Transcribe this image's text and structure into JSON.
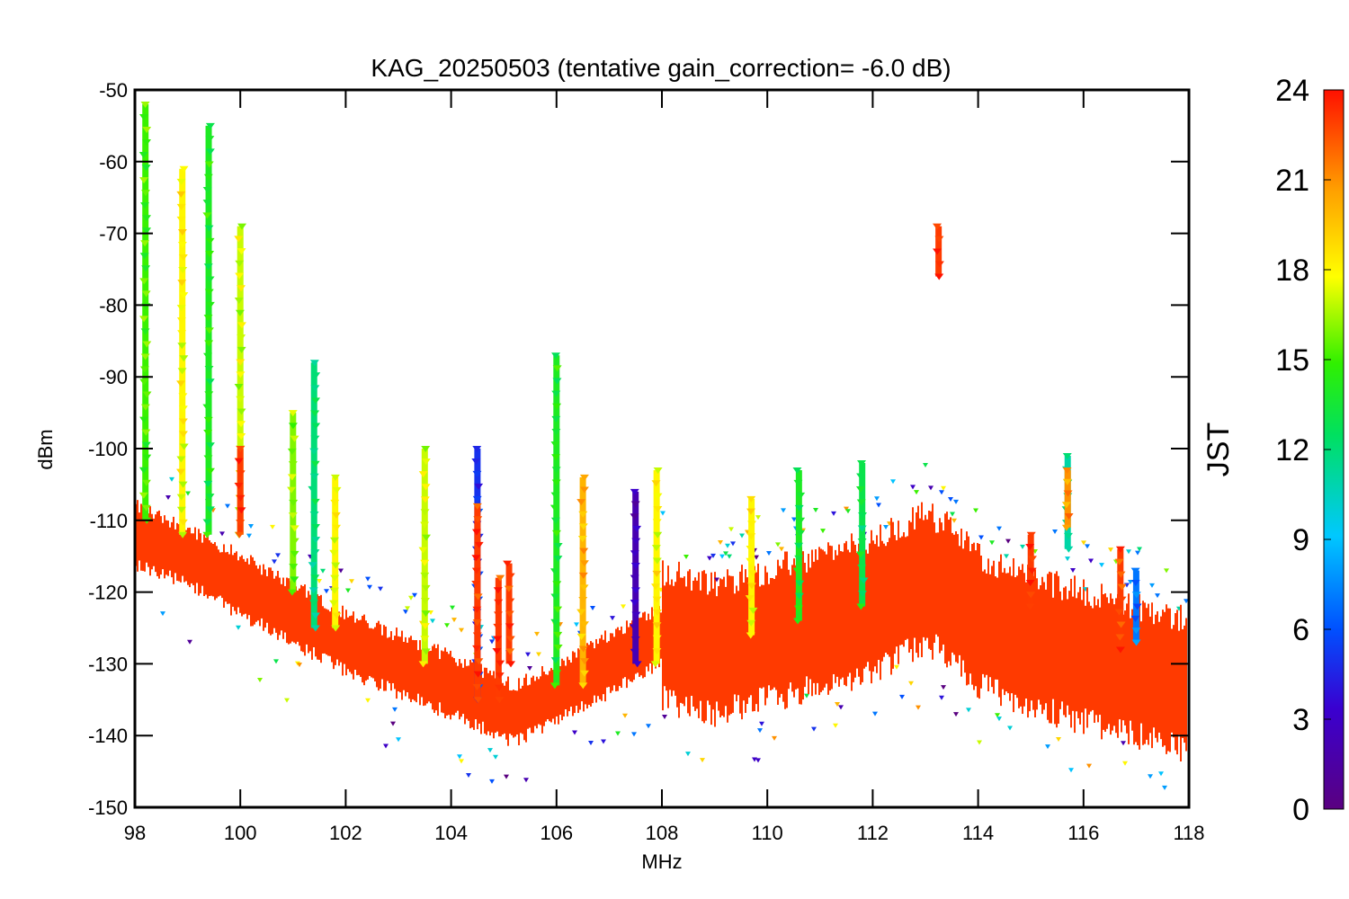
{
  "chart_data": {
    "type": "scatter",
    "title": "KAG_20250503 (tentative gain_correction= -6.0 dB)",
    "xlabel": "MHz",
    "ylabel": "dBm",
    "xlim": [
      98,
      118
    ],
    "ylim": [
      -150,
      -50
    ],
    "xticks": [
      98,
      100,
      102,
      104,
      106,
      108,
      110,
      112,
      114,
      116,
      118
    ],
    "yticks": [
      -150,
      -140,
      -130,
      -120,
      -110,
      -100,
      -90,
      -80,
      -70,
      -60,
      -50
    ],
    "grid": false,
    "marker": "inverted-triangle",
    "colorbar": {
      "label": "JST",
      "range": [
        0,
        24
      ],
      "ticks": [
        0,
        3,
        6,
        9,
        12,
        15,
        18,
        21,
        24
      ],
      "colormap": "rainbow (purple-blue-cyan-green-yellow-orange-red)"
    },
    "noise_floor": [
      {
        "x": 98.0,
        "y": -112
      },
      {
        "x": 99.0,
        "y": -115
      },
      {
        "x": 100.0,
        "y": -119
      },
      {
        "x": 101.0,
        "y": -123
      },
      {
        "x": 102.0,
        "y": -127
      },
      {
        "x": 103.0,
        "y": -130
      },
      {
        "x": 104.0,
        "y": -133
      },
      {
        "x": 104.9,
        "y": -136
      },
      {
        "x": 105.2,
        "y": -137
      },
      {
        "x": 106.0,
        "y": -134
      },
      {
        "x": 107.0,
        "y": -130
      },
      {
        "x": 108.0,
        "y": -126
      },
      {
        "x": 109.0,
        "y": -128
      },
      {
        "x": 110.0,
        "y": -126
      },
      {
        "x": 111.0,
        "y": -124
      },
      {
        "x": 112.0,
        "y": -122
      },
      {
        "x": 113.0,
        "y": -118
      },
      {
        "x": 113.5,
        "y": -120
      },
      {
        "x": 114.0,
        "y": -124
      },
      {
        "x": 115.0,
        "y": -127
      },
      {
        "x": 116.0,
        "y": -129
      },
      {
        "x": 117.0,
        "y": -131
      },
      {
        "x": 118.0,
        "y": -133
      }
    ],
    "peaks": [
      {
        "x": 98.2,
        "y_min": -110,
        "y_max": -52,
        "jst": 15
      },
      {
        "x": 98.9,
        "y_min": -112,
        "y_max": -61,
        "jst": 18
      },
      {
        "x": 99.4,
        "y_min": -112,
        "y_max": -55,
        "jst": 14
      },
      {
        "x": 100.0,
        "y_min": -112,
        "y_max": -69,
        "jst": 17
      },
      {
        "x": 100.0,
        "y_min": -112,
        "y_max": -100,
        "jst": 23
      },
      {
        "x": 101.0,
        "y_min": -120,
        "y_max": -95,
        "jst": 16
      },
      {
        "x": 101.4,
        "y_min": -125,
        "y_max": -88,
        "jst": 12
      },
      {
        "x": 101.8,
        "y_min": -125,
        "y_max": -104,
        "jst": 18
      },
      {
        "x": 103.5,
        "y_min": -130,
        "y_max": -100,
        "jst": 17
      },
      {
        "x": 104.5,
        "y_min": -135,
        "y_max": -100,
        "jst": 5
      },
      {
        "x": 104.5,
        "y_min": -135,
        "y_max": -108,
        "jst": 23
      },
      {
        "x": 104.9,
        "y_min": -135,
        "y_max": -118,
        "jst": 23
      },
      {
        "x": 105.1,
        "y_min": -130,
        "y_max": -116,
        "jst": 23
      },
      {
        "x": 106.0,
        "y_min": -133,
        "y_max": -87,
        "jst": 14
      },
      {
        "x": 106.5,
        "y_min": -133,
        "y_max": -104,
        "jst": 20
      },
      {
        "x": 107.5,
        "y_min": -130,
        "y_max": -106,
        "jst": 2
      },
      {
        "x": 107.9,
        "y_min": -130,
        "y_max": -103,
        "jst": 18
      },
      {
        "x": 109.7,
        "y_min": -126,
        "y_max": -107,
        "jst": 18
      },
      {
        "x": 110.6,
        "y_min": -124,
        "y_max": -103,
        "jst": 14
      },
      {
        "x": 111.8,
        "y_min": -122,
        "y_max": -102,
        "jst": 13
      },
      {
        "x": 113.25,
        "y_min": -76,
        "y_max": -69,
        "jst": 23
      },
      {
        "x": 115.0,
        "y_min": -122,
        "y_max": -112,
        "jst": 23
      },
      {
        "x": 115.7,
        "y_min": -114,
        "y_max": -101,
        "jst": 11
      },
      {
        "x": 115.7,
        "y_min": -111,
        "y_max": -103,
        "jst": 21
      },
      {
        "x": 116.7,
        "y_min": -128,
        "y_max": -114,
        "jst": 23
      },
      {
        "x": 117.0,
        "y_min": -127,
        "y_max": -117,
        "jst": 7
      }
    ]
  }
}
